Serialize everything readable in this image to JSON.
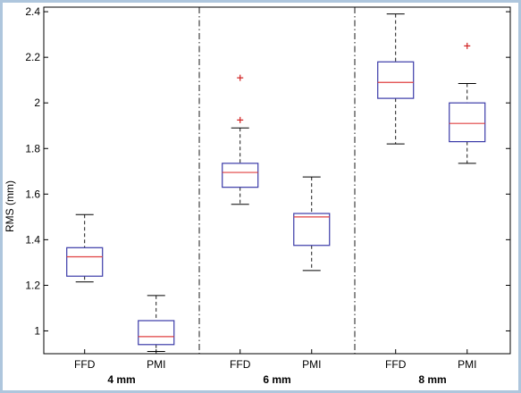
{
  "chart_data": {
    "type": "box",
    "title": "",
    "xlabel": "",
    "ylabel": "RMS (mm)",
    "ylim": [
      0.9,
      2.42
    ],
    "yticks": [
      1,
      1.2,
      1.4,
      1.6,
      1.8,
      2,
      2.2,
      2.4
    ],
    "ytick_labels": [
      "1",
      "1.2",
      "1.4",
      "1.6",
      "1.8",
      "2",
      "2.2",
      "2.4"
    ],
    "grid": false,
    "colors": {
      "box": "#3a3aa8",
      "median": "#e04040",
      "outlier": "#d02020",
      "whisker": "#000000",
      "divider": "#000000"
    },
    "groups": [
      {
        "label": "4 mm",
        "boxes": [
          {
            "label": "FFD",
            "min": 1.215,
            "q1": 1.24,
            "median": 1.325,
            "q3": 1.365,
            "max": 1.51,
            "outliers": []
          },
          {
            "label": "PMI",
            "min": 0.91,
            "q1": 0.94,
            "median": 0.975,
            "q3": 1.045,
            "max": 1.155,
            "outliers": []
          }
        ]
      },
      {
        "label": "6 mm",
        "boxes": [
          {
            "label": "FFD",
            "min": 1.555,
            "q1": 1.63,
            "median": 1.695,
            "q3": 1.735,
            "max": 1.89,
            "outliers": [
              1.925,
              2.11
            ]
          },
          {
            "label": "PMI",
            "min": 1.265,
            "q1": 1.375,
            "median": 1.5,
            "q3": 1.515,
            "max": 1.675,
            "outliers": []
          }
        ]
      },
      {
        "label": "8 mm",
        "boxes": [
          {
            "label": "FFD",
            "min": 1.82,
            "q1": 2.02,
            "median": 2.09,
            "q3": 2.18,
            "max": 2.39,
            "outliers": []
          },
          {
            "label": "PMI",
            "min": 1.735,
            "q1": 1.83,
            "median": 1.91,
            "q3": 2.0,
            "max": 2.085,
            "outliers": [
              2.25
            ]
          }
        ]
      }
    ]
  }
}
